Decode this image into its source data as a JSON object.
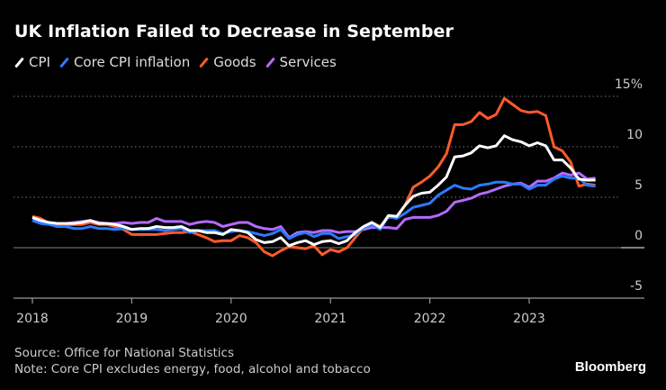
{
  "chart_data": {
    "type": "line",
    "title": "UK Inflation Failed to Decrease in September",
    "xlabel": "",
    "ylabel": "",
    "start_month": "2018-01",
    "end_month": "2023-09",
    "x_ticks": [
      "2018",
      "2019",
      "2020",
      "2021",
      "2022",
      "2023"
    ],
    "y_ticks": [
      {
        "value": 15,
        "label": "15%"
      },
      {
        "value": 10,
        "label": "10"
      },
      {
        "value": 5,
        "label": "5"
      },
      {
        "value": 0,
        "label": "0"
      },
      {
        "value": -5,
        "label": "-5"
      }
    ],
    "ylim": [
      -5,
      15
    ],
    "grid": "horizontal dotted",
    "legend": "top-left",
    "series": [
      {
        "name": "Services",
        "color": "#b36bff",
        "values": [
          2.7,
          2.6,
          2.5,
          2.4,
          2.4,
          2.5,
          2.6,
          2.7,
          2.5,
          2.4,
          2.4,
          2.5,
          2.4,
          2.5,
          2.5,
          2.9,
          2.6,
          2.6,
          2.6,
          2.3,
          2.5,
          2.6,
          2.5,
          2.1,
          2.3,
          2.5,
          2.5,
          2.1,
          1.9,
          1.8,
          2.1,
          1.0,
          1.5,
          1.6,
          1.5,
          1.7,
          1.7,
          1.5,
          1.6,
          1.6,
          1.8,
          2.0,
          2.0,
          2.0,
          1.9,
          2.8,
          3.0,
          3.0,
          3.0,
          3.2,
          3.6,
          4.5,
          4.7,
          4.9,
          5.3,
          5.5,
          5.8,
          6.1,
          6.3,
          6.4,
          6.0,
          6.6,
          6.6,
          6.9,
          7.4,
          7.2,
          7.4,
          6.8,
          6.9
        ]
      },
      {
        "name": "Goods",
        "color": "#ff5a2a",
        "values": [
          3.1,
          2.9,
          2.4,
          2.3,
          2.3,
          2.3,
          2.3,
          2.5,
          2.3,
          2.3,
          2.1,
          1.8,
          1.3,
          1.3,
          1.3,
          1.3,
          1.4,
          1.5,
          1.5,
          1.6,
          1.3,
          1.0,
          0.6,
          0.7,
          0.7,
          1.2,
          1.0,
          0.5,
          -0.4,
          -0.8,
          -0.3,
          0.1,
          0.0,
          -0.1,
          0.2,
          -0.7,
          -0.2,
          -0.4,
          0.0,
          1.0,
          2.0,
          2.5,
          2.1,
          3.0,
          3.0,
          4.2,
          6.0,
          6.5,
          7.1,
          8.0,
          9.3,
          12.2,
          12.2,
          12.5,
          13.4,
          12.8,
          13.2,
          14.8,
          14.2,
          13.6,
          13.4,
          13.5,
          13.1,
          10.0,
          9.6,
          8.5,
          6.1,
          6.3,
          6.2
        ]
      },
      {
        "name": "Core CPI inflation",
        "color": "#2b7bff",
        "values": [
          2.7,
          2.4,
          2.3,
          2.1,
          2.1,
          1.9,
          1.9,
          2.1,
          1.9,
          1.9,
          1.8,
          1.9,
          1.8,
          1.8,
          1.8,
          1.8,
          1.7,
          1.8,
          1.9,
          1.5,
          1.7,
          1.7,
          1.7,
          1.4,
          1.6,
          1.7,
          1.6,
          1.4,
          1.2,
          1.4,
          1.8,
          0.9,
          1.3,
          1.5,
          1.1,
          1.4,
          1.4,
          0.9,
          1.1,
          1.3,
          2.0,
          2.3,
          1.8,
          3.1,
          2.9,
          3.4,
          4.0,
          4.2,
          4.4,
          5.2,
          5.7,
          6.2,
          5.9,
          5.8,
          6.2,
          6.3,
          6.5,
          6.5,
          6.3,
          6.3,
          5.8,
          6.2,
          6.2,
          6.8,
          7.1,
          6.9,
          6.9,
          6.2,
          6.1
        ]
      },
      {
        "name": "CPI",
        "color": "#ffffff",
        "values": [
          3.0,
          2.7,
          2.5,
          2.4,
          2.4,
          2.4,
          2.5,
          2.7,
          2.4,
          2.4,
          2.3,
          2.1,
          1.8,
          1.9,
          1.9,
          2.1,
          2.0,
          2.0,
          2.1,
          1.7,
          1.7,
          1.5,
          1.5,
          1.3,
          1.8,
          1.7,
          1.5,
          0.8,
          0.5,
          0.6,
          1.0,
          0.2,
          0.5,
          0.7,
          0.3,
          0.6,
          0.7,
          0.4,
          0.7,
          1.5,
          2.1,
          2.5,
          2.0,
          3.2,
          3.1,
          4.2,
          5.1,
          5.4,
          5.5,
          6.2,
          7.0,
          9.0,
          9.1,
          9.4,
          10.1,
          9.9,
          10.1,
          11.1,
          10.7,
          10.5,
          10.1,
          10.4,
          10.1,
          8.7,
          8.7,
          7.9,
          6.8,
          6.7,
          6.7
        ]
      }
    ]
  },
  "legend_order": [
    "CPI",
    "Core CPI inflation",
    "Goods",
    "Services"
  ],
  "footer": {
    "source": "Source: Office for National Statistics",
    "note": "Note: Core CPI excludes energy, food, alcohol and tobacco",
    "logo": "Bloomberg"
  }
}
